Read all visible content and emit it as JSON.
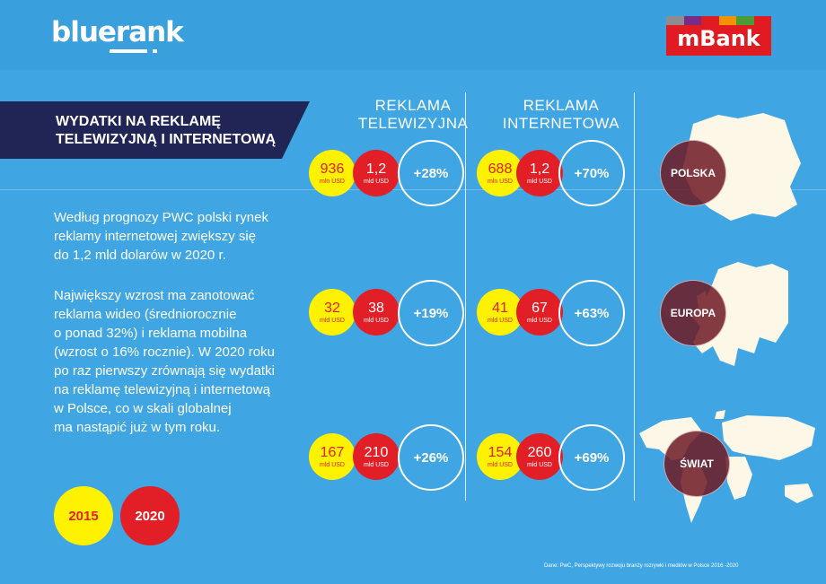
{
  "brand": {
    "name": "bluerank"
  },
  "mbank": {
    "name": "mBank",
    "stripes": [
      "#8e8b91",
      "#7b2b86",
      "#e11b22",
      "#f39200",
      "#4a9c38",
      "#e11b22"
    ]
  },
  "banner": {
    "line1": "WYDATKI NA REKLAMĘ",
    "line2": "TELEWIZYJNĄ I INTERNETOWĄ"
  },
  "columns": {
    "tv": {
      "line1": "REKLAMA",
      "line2": "TELEWIZYJNA"
    },
    "internet": {
      "line1": "REKLAMA",
      "line2": "INTERNETOWA"
    }
  },
  "rows": [
    {
      "region": "POLSKA",
      "tv": {
        "v2015": "936",
        "u2015": "mln USD",
        "v2020": "1,2",
        "u2020": "mld USD",
        "growth": "+28%"
      },
      "internet": {
        "v2015": "688",
        "u2015": "mln USD",
        "v2020": "1,2",
        "u2020": "mld USD",
        "growth": "+70%"
      }
    },
    {
      "region": "EUROPA",
      "tv": {
        "v2015": "32",
        "u2015": "mld USD",
        "v2020": "38",
        "u2020": "mld USD",
        "growth": "+19%"
      },
      "internet": {
        "v2015": "41",
        "u2015": "mld USD",
        "v2020": "67",
        "u2020": "mld USD",
        "growth": "+63%"
      }
    },
    {
      "region": "ŚWIAT",
      "tv": {
        "v2015": "167",
        "u2015": "mld USD",
        "v2020": "210",
        "u2020": "mld USD",
        "growth": "+26%"
      },
      "internet": {
        "v2015": "154",
        "u2015": "mld USD",
        "v2020": "260",
        "u2020": "mld USD",
        "growth": "+69%"
      }
    }
  ],
  "text": {
    "p1": [
      "Według prognozy PWC polski rynek",
      "reklamy internetowej zwiększy się",
      "do 1,2 mld dolarów w 2020 r."
    ],
    "p2": [
      "Największy wzrost ma zanotować",
      "reklama wideo (średniorocznie",
      "o ponad 32%) i reklama mobilna",
      "(wzrost o 16% rocznie). W 2020 roku",
      "po raz pierwszy zrównają się wydatki",
      "na reklamę telewizyjną i internetową",
      "w Polsce, co w skali globalnej",
      "ma nastąpić już w tym roku."
    ]
  },
  "legend": {
    "y2015": "2015",
    "y2020": "2020"
  },
  "source": "Dane: PwC, Perspektywy rozwoju branży rozrywki i mediów w Polsce 2016 -2020",
  "colors": {
    "background": "#3fa6e3",
    "yellow": "#fff200",
    "red": "#e21f26",
    "navy": "#202555"
  }
}
